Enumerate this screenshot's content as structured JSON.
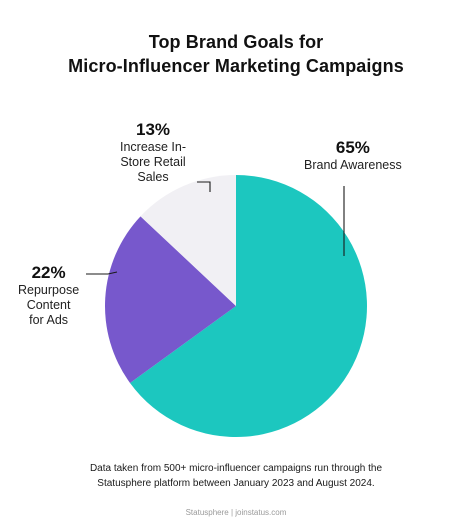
{
  "chart_data": {
    "type": "pie",
    "title_lines": [
      "Top Brand Goals for",
      "Micro-Influencer Marketing Campaigns"
    ],
    "slices": [
      {
        "percent_label": "65%",
        "label_lines": [
          "Brand Awareness"
        ],
        "value": 65,
        "color": "#1cc7bf"
      },
      {
        "percent_label": "22%",
        "label_lines": [
          "Repurpose",
          "Content",
          "for Ads"
        ],
        "value": 22,
        "color": "#7758cc"
      },
      {
        "percent_label": "13%",
        "label_lines": [
          "Increase In-",
          "Store Retail",
          "Sales"
        ],
        "value": 13,
        "color": "#f1f0f4"
      }
    ],
    "start": "12 o'clock",
    "direction": "clockwise",
    "leader_line_color": "#1a1a1a"
  },
  "footnote_lines": [
    "Data taken from 500+ micro-influencer campaigns run through the",
    "Statusphere platform between January 2023 and August 2024."
  ],
  "credit": "Statusphere | joinstatus.com"
}
